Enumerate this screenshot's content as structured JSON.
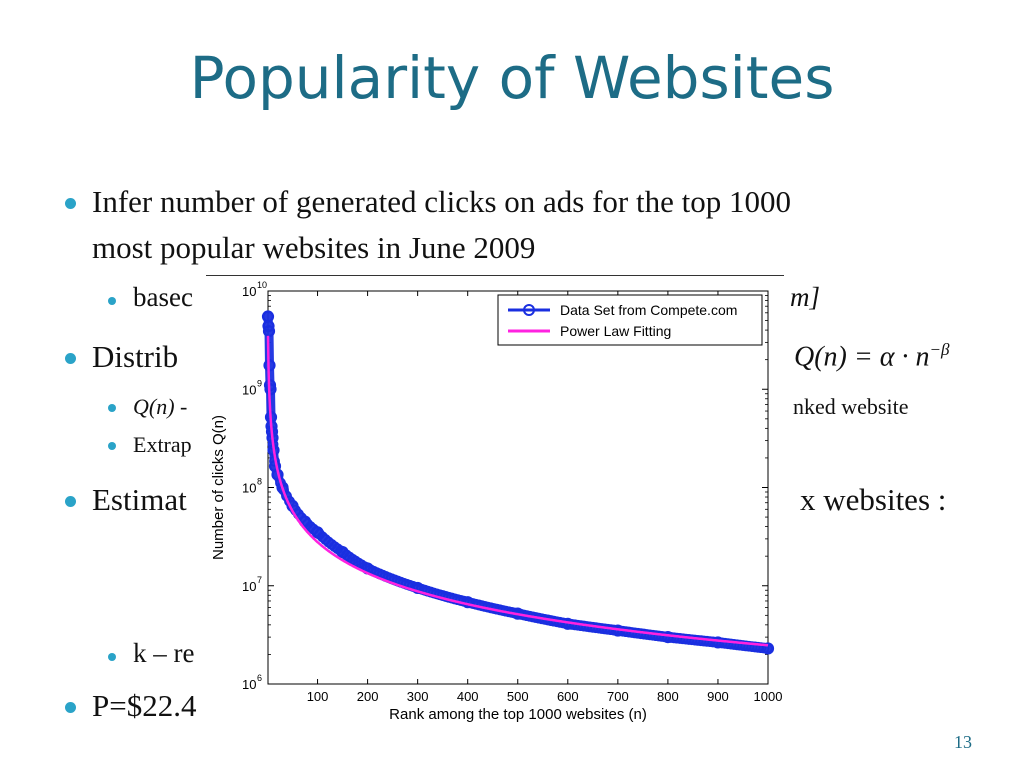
{
  "slide": {
    "title": "Popularity of Websites",
    "page_number": "13",
    "accent_color": "#1d6c86",
    "bullet_color": "#2aa3c8"
  },
  "bullets": {
    "b1_line1": "Infer number of generated clicks on ads for the top 1000",
    "b1_line2": "most popular websites in June 2009",
    "b1_sub1_left": "basec",
    "b1_sub1_right": "m]",
    "b2_left": "Distrib",
    "b2_formula": "Q(n) = α · n",
    "b2_formula_exp": "−β",
    "b2_sub1_left": "Q(n) -",
    "b2_sub1_right": "nked website",
    "b2_sub2_left": "Extrap",
    "b3_left": "Estimat",
    "b3_right": "x websites :",
    "b3_sub1_left": "k – re",
    "b4_left": "P=$22.4"
  },
  "chart_data": {
    "type": "scatter",
    "title": "",
    "xlabel": "Rank among the top 1000 websites (n)",
    "ylabel": "Number of clicks Q(n)",
    "xlim": [
      1,
      1000
    ],
    "ylim": [
      1000000,
      10000000000
    ],
    "y_scale": "log",
    "x_ticks": [
      "100",
      "200",
      "300",
      "400",
      "500",
      "600",
      "700",
      "800",
      "900",
      "1000"
    ],
    "y_ticks": [
      "10",
      "10",
      "10",
      "10",
      "10"
    ],
    "y_tick_exponents": [
      "6",
      "7",
      "8",
      "9",
      "10"
    ],
    "legend_position": "top-right",
    "series": [
      {
        "name": "Data Set from Compete.com",
        "color": "#1a2fe0",
        "marker": "circle",
        "x": [
          1,
          2,
          3,
          4,
          5,
          6,
          7,
          8,
          9,
          10,
          12,
          15,
          20,
          30,
          50,
          75,
          100,
          150,
          200,
          300,
          400,
          500,
          600,
          700,
          800,
          900,
          1000
        ],
        "y": [
          5500000000,
          4400000000,
          3900000000,
          1750000000,
          1100000000,
          1000000000,
          520000000,
          420000000,
          370000000,
          320000000,
          240000000,
          165000000,
          135000000,
          100000000,
          65000000,
          45000000,
          35000000,
          22000000,
          15000000,
          9500000,
          6800000,
          5200000,
          4100000,
          3500000,
          3000000,
          2650000,
          2300000
        ]
      },
      {
        "name": "Power Law Fitting",
        "color": "#ff22e0",
        "type": "line",
        "alpha": 3500000000,
        "beta": 1.05
      }
    ]
  }
}
